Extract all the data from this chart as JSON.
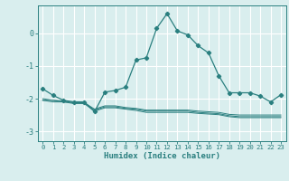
{
  "x": [
    0,
    1,
    2,
    3,
    4,
    5,
    6,
    7,
    8,
    9,
    10,
    11,
    12,
    13,
    14,
    15,
    16,
    17,
    18,
    19,
    20,
    21,
    22,
    23
  ],
  "main_line": [
    -1.7,
    -1.9,
    -2.05,
    -2.1,
    -2.1,
    -2.4,
    -1.8,
    -1.75,
    -1.65,
    -0.82,
    -0.75,
    0.15,
    0.6,
    0.07,
    -0.05,
    -0.38,
    -0.6,
    -1.3,
    -1.82,
    -1.82,
    -1.82,
    -1.92,
    -2.1,
    -1.88
  ],
  "flat_line1": [
    -2.05,
    -2.05,
    -2.1,
    -2.12,
    -2.12,
    -2.35,
    -2.25,
    -2.25,
    -2.3,
    -2.32,
    -2.38,
    -2.38,
    -2.38,
    -2.38,
    -2.38,
    -2.42,
    -2.44,
    -2.46,
    -2.52,
    -2.55,
    -2.55,
    -2.55,
    -2.55,
    -2.55
  ],
  "flat_line2": [
    -2.05,
    -2.1,
    -2.1,
    -2.15,
    -2.15,
    -2.38,
    -2.28,
    -2.28,
    -2.32,
    -2.36,
    -2.42,
    -2.42,
    -2.42,
    -2.42,
    -2.42,
    -2.45,
    -2.47,
    -2.49,
    -2.55,
    -2.58,
    -2.58,
    -2.58,
    -2.58,
    -2.58
  ],
  "flat_line3": [
    -2.0,
    -2.05,
    -2.07,
    -2.12,
    -2.12,
    -2.32,
    -2.22,
    -2.22,
    -2.27,
    -2.3,
    -2.35,
    -2.35,
    -2.35,
    -2.35,
    -2.35,
    -2.38,
    -2.4,
    -2.42,
    -2.48,
    -2.5,
    -2.5,
    -2.5,
    -2.5,
    -2.5
  ],
  "main_color": "#2a7f7f",
  "background_color": "#d9eeee",
  "grid_color": "#ffffff",
  "xlabel": "Humidex (Indice chaleur)",
  "xlim": [
    -0.5,
    23.5
  ],
  "ylim": [
    -3.3,
    0.85
  ],
  "yticks": [
    0,
    -1,
    -2,
    -3
  ],
  "xticks": [
    0,
    1,
    2,
    3,
    4,
    5,
    6,
    7,
    8,
    9,
    10,
    11,
    12,
    13,
    14,
    15,
    16,
    17,
    18,
    19,
    20,
    21,
    22,
    23
  ],
  "figsize": [
    3.2,
    2.0
  ],
  "dpi": 100
}
